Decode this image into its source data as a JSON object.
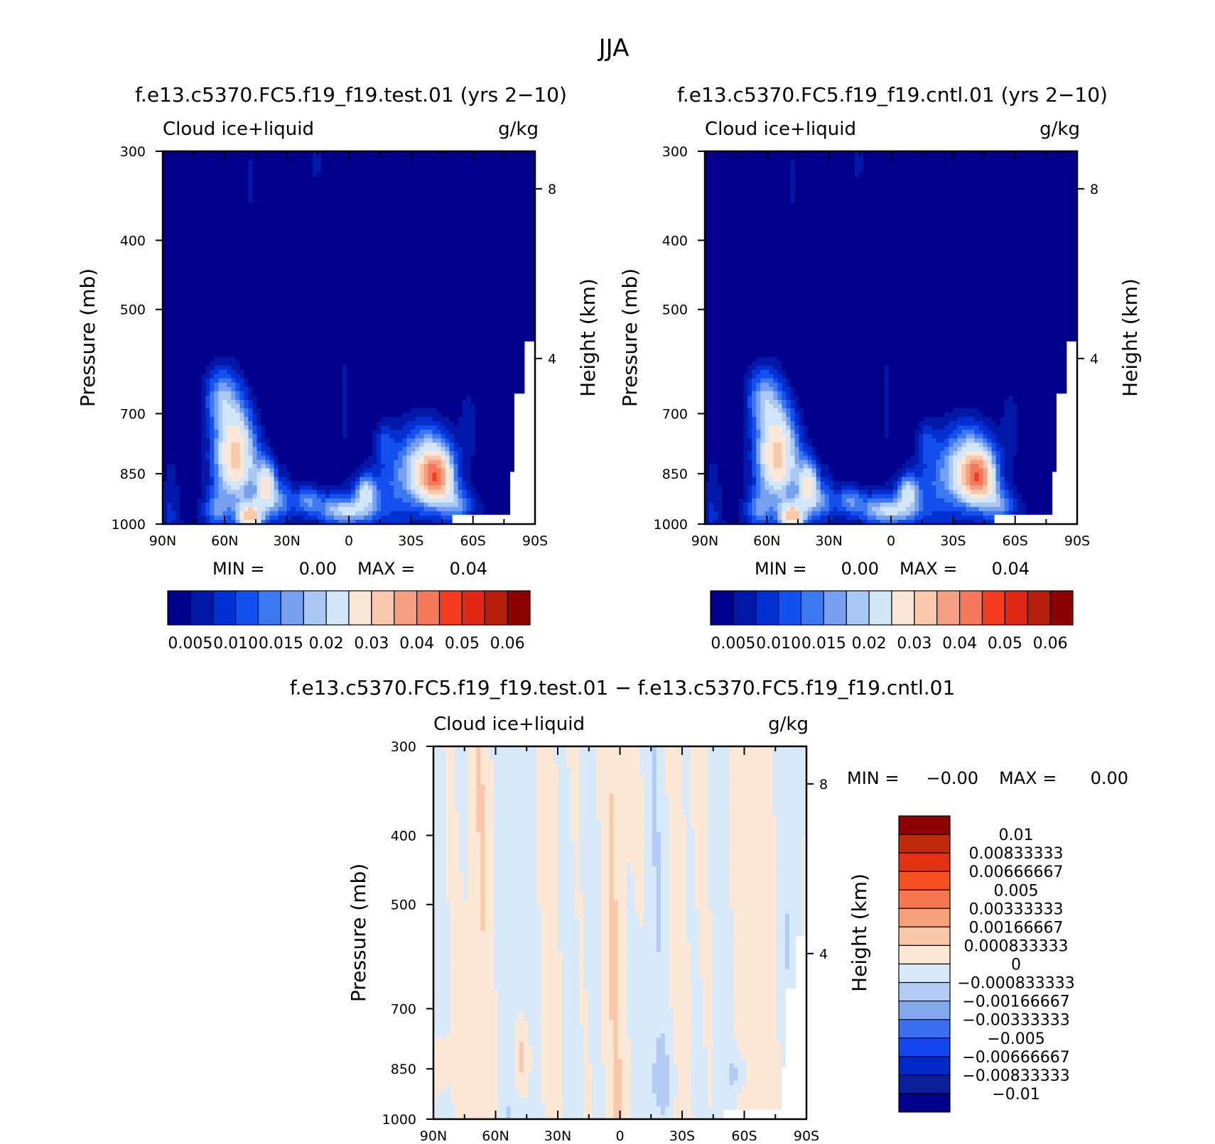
{
  "title": "JJA",
  "colors": {
    "seq": [
      "#00008c",
      "#0018a8",
      "#0030d2",
      "#1450f0",
      "#3c78f0",
      "#78a0f0",
      "#aac8f5",
      "#d2e6fa",
      "#fde8d8",
      "#fac8aa",
      "#f5a082",
      "#f5785a",
      "#f53c1e",
      "#e02814",
      "#b41e0a",
      "#8c0000"
    ],
    "div": [
      "#00008c",
      "#0a1e9a",
      "#0028c8",
      "#1446f0",
      "#3c6ef0",
      "#82a8f0",
      "#b4ccf5",
      "#d8eafa",
      "#fde8d6",
      "#fac8a8",
      "#f5a078",
      "#f57850",
      "#f5501e",
      "#e13214",
      "#be2a0a",
      "#8c0000"
    ]
  },
  "chart_data": [
    {
      "type": "heatmap",
      "title": "f.e13.c5370.FC5.f19_f19.test.01 (yrs 2−10)",
      "left_label": "Cloud ice+liquid",
      "right_label": "g/kg",
      "ylabel": "Pressure (mb)",
      "y2label": "Height (km)",
      "xticks": [
        "90N",
        "60N",
        "30N",
        "0",
        "30S",
        "60S",
        "90S"
      ],
      "yticks": [
        300,
        400,
        500,
        700,
        850,
        1000
      ],
      "y2ticks": [
        8,
        4
      ],
      "stats": {
        "min_label": "MIN =",
        "min": "0.00",
        "max_label": "MAX =",
        "max": "0.04"
      },
      "colorbar_labels": [
        "0.005",
        "0.010",
        "0.015",
        "0.02",
        "0.03",
        "0.04",
        "0.05",
        "0.06"
      ],
      "features": [
        {
          "lat": 56,
          "p": 790,
          "v": 0.034
        },
        {
          "lat": 49,
          "p": 990,
          "v": 0.032
        },
        {
          "lat": -42,
          "p": 860,
          "v": 0.034
        },
        {
          "lat": 38,
          "p": 890,
          "v": 0.024
        },
        {
          "lat": -8,
          "p": 895,
          "v": 0.018
        },
        {
          "lat": 20,
          "p": 920,
          "v": 0.014
        },
        {
          "lat": -17,
          "p": 760,
          "v": 0.01
        },
        {
          "lat": -58,
          "p": 720,
          "v": 0.009
        }
      ]
    },
    {
      "type": "heatmap",
      "title": "f.e13.c5370.FC5.f19_f19.cntl.01 (yrs 2−10)",
      "left_label": "Cloud ice+liquid",
      "right_label": "g/kg",
      "ylabel": "Pressure (mb)",
      "y2label": "Height (km)",
      "xticks": [
        "90N",
        "60N",
        "30N",
        "0",
        "30S",
        "60S",
        "90S"
      ],
      "yticks": [
        300,
        400,
        500,
        700,
        850,
        1000
      ],
      "y2ticks": [
        8,
        4
      ],
      "stats": {
        "min_label": "MIN =",
        "min": "0.00",
        "max_label": "MAX =",
        "max": "0.04"
      },
      "colorbar_labels": [
        "0.005",
        "0.010",
        "0.015",
        "0.02",
        "0.03",
        "0.04",
        "0.05",
        "0.06"
      ],
      "features": [
        {
          "lat": 56,
          "p": 790,
          "v": 0.034
        },
        {
          "lat": 49,
          "p": 990,
          "v": 0.032
        },
        {
          "lat": -42,
          "p": 860,
          "v": 0.034
        },
        {
          "lat": 38,
          "p": 890,
          "v": 0.024
        },
        {
          "lat": -8,
          "p": 895,
          "v": 0.018
        },
        {
          "lat": 20,
          "p": 920,
          "v": 0.014
        },
        {
          "lat": -17,
          "p": 760,
          "v": 0.01
        },
        {
          "lat": -58,
          "p": 720,
          "v": 0.009
        }
      ]
    },
    {
      "type": "heatmap",
      "title": "f.e13.c5370.FC5.f19_f19.test.01 − f.e13.c5370.FC5.f19_f19.cntl.01",
      "left_label": "Cloud ice+liquid",
      "right_label": "g/kg",
      "ylabel": "Pressure (mb)",
      "y2label": "Height (km)",
      "xticks": [
        "90N",
        "60N",
        "30N",
        "0",
        "30S",
        "60S",
        "90S"
      ],
      "yticks": [
        300,
        400,
        500,
        700,
        850,
        1000
      ],
      "y2ticks": [
        8,
        4
      ],
      "stats": {
        "min_label": "MIN =",
        "min": "−0.00",
        "max_label": "MAX =",
        "max": "0.00"
      },
      "colorbar_labels": [
        "0.01",
        "0.00833333",
        "0.00666667",
        "0.005",
        "0.00333333",
        "0.00166667",
        "0.000833333",
        "0",
        "−0.000833333",
        "−0.00166667",
        "−0.00333333",
        "−0.005",
        "−0.00666667",
        "−0.00833333",
        "−0.01"
      ]
    }
  ]
}
